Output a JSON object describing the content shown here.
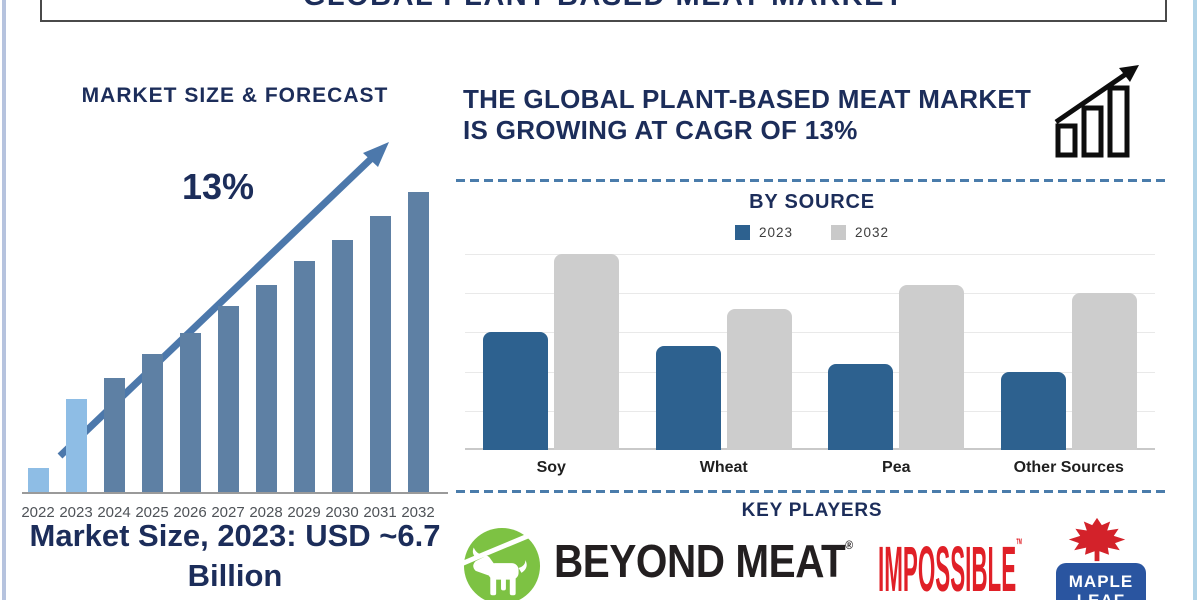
{
  "page": {
    "title": "GLOBAL PLANT-BASED MEAT MARKET"
  },
  "left_panel": {
    "title": "MARKET SIZE & FORECAST",
    "cagr_annotation": "13%",
    "caption": "Market Size, 2023: USD ~6.7 Billion"
  },
  "right_panel": {
    "headline": "THE GLOBAL PLANT-BASED MEAT MARKET IS GROWING AT CAGR OF 13%",
    "by_source": {
      "title": "BY SOURCE",
      "legend": [
        "2023",
        "2032"
      ]
    },
    "key_players": {
      "title": "KEY PLAYERS",
      "players": [
        "Beyond Meat",
        "Impossible",
        "Maple Leaf"
      ]
    }
  },
  "logos": {
    "beyond_meat": {
      "text": "BEYOND MEAT",
      "mark": "®"
    },
    "impossible": {
      "text": "IMPOSSIBLE",
      "mark": "™"
    },
    "maple_leaf": {
      "line1": "MAPLE",
      "line2": "LEAF"
    }
  },
  "chart_data": [
    {
      "type": "bar",
      "title": "MARKET SIZE & FORECAST",
      "categories": [
        "2022",
        "2023",
        "2024",
        "2025",
        "2026",
        "2027",
        "2028",
        "2029",
        "2030",
        "2031",
        "2032"
      ],
      "values": [
        8,
        31,
        38,
        46,
        53,
        62,
        69,
        77,
        84,
        92,
        100
      ],
      "value_note": "relative bar heights in % of 2032 bar; y-axis unlabeled",
      "highlighted_categories": [
        "2022",
        "2023"
      ],
      "annotation": "13%",
      "footnote": "Market Size, 2023: USD ~6.7 Billion",
      "trend_arrow": true,
      "xlabel": "",
      "ylabel": "",
      "grid": false
    },
    {
      "type": "bar",
      "title": "BY SOURCE",
      "categories": [
        "Soy",
        "Wheat",
        "Pea",
        "Other Sources"
      ],
      "series": [
        {
          "name": "2023",
          "values": [
            60,
            53,
            44,
            40
          ]
        },
        {
          "name": "2032",
          "values": [
            100,
            72,
            84,
            80
          ]
        }
      ],
      "value_note": "relative bar heights in % of plot height; y-axis unlabeled",
      "legend_position": "top",
      "xlabel": "",
      "ylabel": "",
      "grid": true
    }
  ],
  "colors": {
    "navy": "#1c2d5a",
    "forecast_bar": "#5e80a4",
    "forecast_bar_highlight": "#8ebde5",
    "arrow_blue": "#4c78ab",
    "source_blue": "#2d618f",
    "source_gray": "#cdcdcd",
    "dashed_line": "#4a7cab",
    "beyond_green": "#7dc243",
    "logo_black": "#231f20",
    "impossible_red": "#e02027",
    "maple_red": "#d3222a",
    "maple_blue": "#2a55a0"
  }
}
